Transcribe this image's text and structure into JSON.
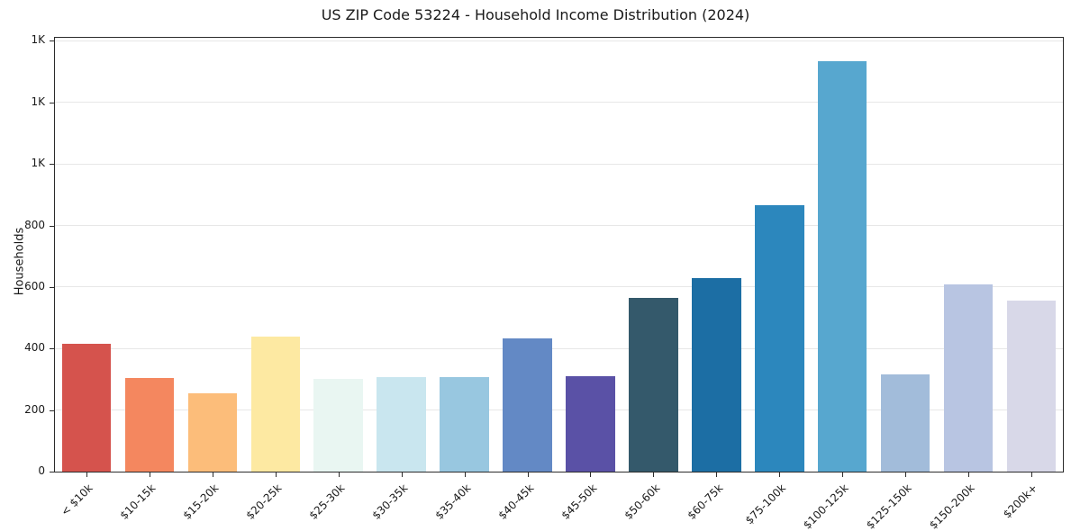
{
  "chart_data": {
    "type": "bar",
    "title": "US ZIP Code 53224 - Household Income Distribution (2024)",
    "xlabel": "",
    "ylabel": "Households",
    "ylim": [
      0,
      1410
    ],
    "grid": true,
    "legend": false,
    "categories": [
      "< $10k",
      "$10-15k",
      "$15-20k",
      "$20-25k",
      "$25-30k",
      "$30-35k",
      "$35-40k",
      "$40-45k",
      "$45-50k",
      "$50-60k",
      "$60-75k",
      "$75-100k",
      "$100-125k",
      "$125-150k",
      "$150-200k",
      "$200k+"
    ],
    "values": [
      415,
      303,
      255,
      440,
      300,
      306,
      306,
      432,
      310,
      566,
      630,
      867,
      1335,
      315,
      608,
      556
    ],
    "bar_colors": [
      "#d5534d",
      "#f4875f",
      "#fcbd7a",
      "#fde9a2",
      "#e9f6f2",
      "#c9e6ef",
      "#98c7e0",
      "#6389c5",
      "#5a51a6",
      "#34596b",
      "#1c6ea4",
      "#2c87bd",
      "#57a7cf",
      "#a2bcda",
      "#b8c5e2",
      "#d8d8e8"
    ],
    "yticks": [
      {
        "value": 0,
        "label": "0"
      },
      {
        "value": 200,
        "label": "200"
      },
      {
        "value": 400,
        "label": "400"
      },
      {
        "value": 600,
        "label": "600"
      },
      {
        "value": 800,
        "label": "800"
      },
      {
        "value": 1000,
        "label": "1K"
      },
      {
        "value": 1200,
        "label": "1K"
      },
      {
        "value": 1400,
        "label": "1K"
      }
    ],
    "grid_color": "#e7e7e7",
    "spine_color": "#2b2b2b",
    "bar_width_fraction": 0.78
  }
}
